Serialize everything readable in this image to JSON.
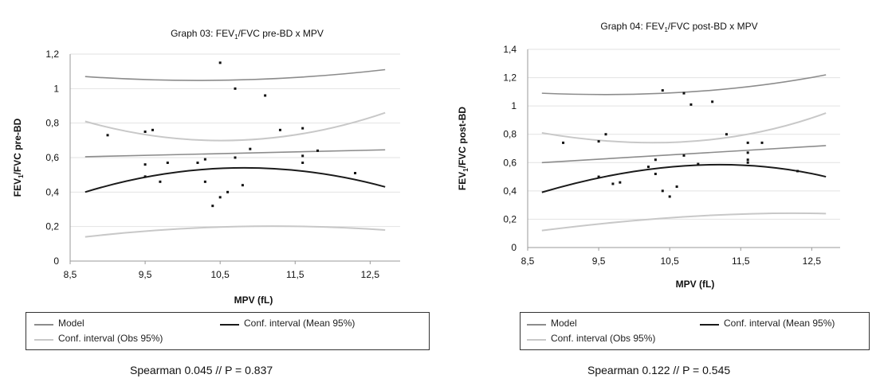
{
  "chart_data": [
    {
      "type": "scatter",
      "title_prefix": "Graph 03: FEV",
      "title_sub": "1",
      "title_suffix": "/FVC pre-BD x MPV",
      "ylabel_prefix": "FEV",
      "ylabel_sub": "1",
      "ylabel_suffix": "/FVC pre-BD",
      "xlabel": "MPV (fL)",
      "xlim": [
        8.5,
        12.9
      ],
      "ylim": [
        0,
        1.2
      ],
      "xticks": [
        "8,5",
        "9,5",
        "10,5",
        "11,5",
        "12,5"
      ],
      "xtick_values": [
        8.5,
        9.5,
        10.5,
        11.5,
        12.5
      ],
      "yticks": [
        "0",
        "0,2",
        "0,4",
        "0,6",
        "0,8",
        "1",
        "1,2"
      ],
      "ytick_values": [
        0,
        0.2,
        0.4,
        0.6,
        0.8,
        1.0,
        1.2
      ],
      "grid": "horizontal",
      "points": [
        {
          "x": 9.0,
          "y": 0.73
        },
        {
          "x": 9.5,
          "y": 0.75
        },
        {
          "x": 9.6,
          "y": 0.76
        },
        {
          "x": 9.5,
          "y": 0.56
        },
        {
          "x": 9.5,
          "y": 0.49
        },
        {
          "x": 9.7,
          "y": 0.46
        },
        {
          "x": 9.8,
          "y": 0.57
        },
        {
          "x": 10.2,
          "y": 0.57
        },
        {
          "x": 10.3,
          "y": 0.59
        },
        {
          "x": 10.3,
          "y": 0.46
        },
        {
          "x": 10.4,
          "y": 0.32
        },
        {
          "x": 10.5,
          "y": 1.15
        },
        {
          "x": 10.5,
          "y": 0.37
        },
        {
          "x": 10.6,
          "y": 0.4
        },
        {
          "x": 10.7,
          "y": 1.0
        },
        {
          "x": 10.7,
          "y": 0.6
        },
        {
          "x": 10.8,
          "y": 0.44
        },
        {
          "x": 10.9,
          "y": 0.65
        },
        {
          "x": 11.1,
          "y": 0.96
        },
        {
          "x": 11.3,
          "y": 0.76
        },
        {
          "x": 11.6,
          "y": 0.77
        },
        {
          "x": 11.6,
          "y": 0.61
        },
        {
          "x": 11.6,
          "y": 0.57
        },
        {
          "x": 11.8,
          "y": 0.64
        },
        {
          "x": 12.3,
          "y": 0.51
        }
      ],
      "model": [
        [
          8.7,
          0.605
        ],
        [
          12.7,
          0.645
        ]
      ],
      "ci_mean": {
        "lower": [
          [
            8.7,
            0.4
          ],
          [
            10.7,
            0.54
          ],
          [
            12.7,
            0.43
          ]
        ],
        "upper": [
          [
            8.7,
            0.81
          ],
          [
            10.7,
            0.7
          ],
          [
            12.7,
            0.86
          ]
        ]
      },
      "ci_obs": {
        "lower": [
          [
            8.7,
            0.14
          ],
          [
            10.7,
            0.2
          ],
          [
            12.7,
            0.18
          ]
        ],
        "upper": [
          [
            8.7,
            1.07
          ],
          [
            10.7,
            1.05
          ],
          [
            12.7,
            1.11
          ]
        ]
      },
      "legend": {
        "model": "Model",
        "ci_mean": "Conf. interval (Mean 95%)",
        "ci_obs": "Conf. interval (Obs 95%)"
      },
      "stat_text": "Spearman 0.045 //  P = 0.837",
      "colors": {
        "model": "#8c8c8c",
        "ci_mean": "#1a1a1a",
        "ci_obs": "#c8c8c8",
        "points": "#111111",
        "grid": "#e2e2e2",
        "axis": "#999999"
      }
    },
    {
      "type": "scatter",
      "title_prefix": "Graph 04: FEV",
      "title_sub": "1",
      "title_suffix": "/FVC post-BD x MPV",
      "ylabel_prefix": "FEV",
      "ylabel_sub": "1",
      "ylabel_suffix": "/FVC post-BD",
      "xlabel": "MPV (fL)",
      "xlim": [
        8.5,
        12.9
      ],
      "ylim": [
        0,
        1.4
      ],
      "xticks": [
        "8,5",
        "9,5",
        "10,5",
        "11,5",
        "12,5"
      ],
      "xtick_values": [
        8.5,
        9.5,
        10.5,
        11.5,
        12.5
      ],
      "yticks": [
        "0",
        "0,2",
        "0,4",
        "0,6",
        "0,8",
        "1",
        "1,2",
        "1,4"
      ],
      "ytick_values": [
        0,
        0.2,
        0.4,
        0.6,
        0.8,
        1.0,
        1.2,
        1.4
      ],
      "grid": "horizontal",
      "points": [
        {
          "x": 9.0,
          "y": 0.74
        },
        {
          "x": 9.5,
          "y": 0.75
        },
        {
          "x": 9.6,
          "y": 0.8
        },
        {
          "x": 9.5,
          "y": 0.5
        },
        {
          "x": 9.7,
          "y": 0.45
        },
        {
          "x": 9.8,
          "y": 0.46
        },
        {
          "x": 10.2,
          "y": 0.57
        },
        {
          "x": 10.3,
          "y": 0.62
        },
        {
          "x": 10.3,
          "y": 0.52
        },
        {
          "x": 10.4,
          "y": 1.11
        },
        {
          "x": 10.4,
          "y": 0.4
        },
        {
          "x": 10.5,
          "y": 0.36
        },
        {
          "x": 10.6,
          "y": 0.43
        },
        {
          "x": 10.7,
          "y": 1.09
        },
        {
          "x": 10.7,
          "y": 0.65
        },
        {
          "x": 10.8,
          "y": 1.01
        },
        {
          "x": 10.9,
          "y": 0.59
        },
        {
          "x": 11.1,
          "y": 1.03
        },
        {
          "x": 11.3,
          "y": 0.8
        },
        {
          "x": 11.6,
          "y": 0.74
        },
        {
          "x": 11.6,
          "y": 0.67
        },
        {
          "x": 11.6,
          "y": 0.62
        },
        {
          "x": 11.6,
          "y": 0.6
        },
        {
          "x": 11.8,
          "y": 0.74
        },
        {
          "x": 12.3,
          "y": 0.54
        }
      ],
      "model": [
        [
          8.7,
          0.6
        ],
        [
          12.7,
          0.72
        ]
      ],
      "ci_mean": {
        "lower": [
          [
            8.7,
            0.39
          ],
          [
            10.8,
            0.58
          ],
          [
            12.7,
            0.5
          ]
        ],
        "upper": [
          [
            8.7,
            0.81
          ],
          [
            10.8,
            0.75
          ],
          [
            12.7,
            0.95
          ]
        ]
      },
      "ci_obs": {
        "lower": [
          [
            8.7,
            0.12
          ],
          [
            10.8,
            0.22
          ],
          [
            12.7,
            0.24
          ]
        ],
        "upper": [
          [
            8.7,
            1.09
          ],
          [
            10.8,
            1.1
          ],
          [
            12.7,
            1.22
          ]
        ]
      },
      "legend": {
        "model": "Model",
        "ci_mean": "Conf. interval (Mean 95%)",
        "ci_obs": "Conf. interval (Obs 95%)"
      },
      "stat_text": "Spearman 0.122 //  P = 0.545",
      "colors": {
        "model": "#8c8c8c",
        "ci_mean": "#1a1a1a",
        "ci_obs": "#c8c8c8",
        "points": "#111111",
        "grid": "#e2e2e2",
        "axis": "#999999"
      }
    }
  ]
}
